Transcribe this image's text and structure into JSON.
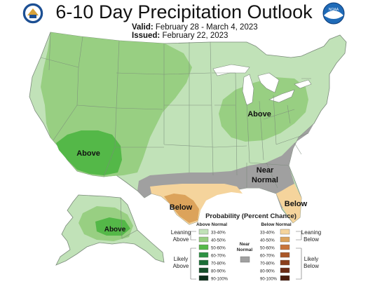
{
  "header": {
    "title": "6-10 Day Precipitation Outlook",
    "valid_label": "Valid:",
    "valid_value": "February 28 - March 4, 2023",
    "issued_label": "Issued:",
    "issued_value": "February 22, 2023"
  },
  "colors": {
    "above_33_40": "#c1e2b8",
    "above_40_50": "#98cf82",
    "above_50_60": "#54b848",
    "above_60_70": "#2d9243",
    "above_70_80": "#1c6f37",
    "above_80_90": "#154f2a",
    "above_90_100": "#0b2f1a",
    "near_normal": "#a0a0a0",
    "below_33_40": "#f5d49c",
    "below_40_50": "#dca35b",
    "below_50_60": "#c8743a",
    "below_60_70": "#a95728",
    "below_70_80": "#8a3e1c",
    "below_80_90": "#6b2b15",
    "below_90_100": "#4a1c0d",
    "state_lines": "#7a8a7a",
    "lakes": "#ffffff"
  },
  "map_labels": {
    "above_west": "Above",
    "above_east": "Above",
    "above_alaska": "Above",
    "near_normal_line1": "Near",
    "near_normal_line2": "Normal",
    "below_texas": "Below",
    "below_florida": "Below"
  },
  "legend": {
    "title": "Probability (Percent Chance)",
    "above_header": "Above Normal",
    "near_header_line1": "Near",
    "near_header_line2": "Normal",
    "below_header": "Below Normal",
    "leaning_above_1": "Leaning",
    "leaning_above_2": "Above",
    "likely_above_1": "Likely",
    "likely_above_2": "Above",
    "leaning_below_1": "Leaning",
    "leaning_below_2": "Below",
    "likely_below_1": "Likely",
    "likely_below_2": "Below",
    "ranges": [
      "33-40%",
      "40-50%",
      "50-60%",
      "60-70%",
      "70-80%",
      "80-90%",
      "90-100%"
    ]
  },
  "logos": {
    "left": "doc-seal-icon",
    "right": "noaa-logo-icon",
    "noaa_text": "NOAA"
  }
}
